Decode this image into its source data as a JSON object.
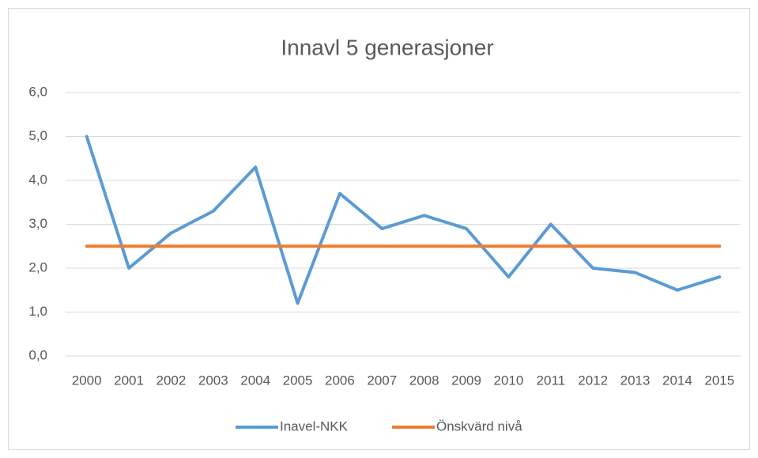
{
  "chart_data": {
    "type": "line",
    "title": "Innavl 5 generasjoner",
    "categories": [
      "2000",
      "2001",
      "2002",
      "2003",
      "2004",
      "2005",
      "2006",
      "2007",
      "2008",
      "2009",
      "2010",
      "2011",
      "2012",
      "2013",
      "2014",
      "2015"
    ],
    "series": [
      {
        "name": "Inavel-NKK",
        "color": "#5b9bd5",
        "values": [
          5.0,
          2.0,
          2.8,
          3.3,
          4.3,
          1.2,
          3.7,
          2.9,
          3.2,
          2.9,
          1.8,
          3.0,
          2.0,
          1.9,
          1.5,
          1.8
        ]
      },
      {
        "name": "Önskvärd nivå",
        "color": "#ed7d31",
        "values": [
          2.5,
          2.5,
          2.5,
          2.5,
          2.5,
          2.5,
          2.5,
          2.5,
          2.5,
          2.5,
          2.5,
          2.5,
          2.5,
          2.5,
          2.5,
          2.5
        ]
      }
    ],
    "ylim": [
      0,
      6
    ],
    "yticks": [
      {
        "value": 0,
        "label": "0,0"
      },
      {
        "value": 1,
        "label": "1,0"
      },
      {
        "value": 2,
        "label": "2,0"
      },
      {
        "value": 3,
        "label": "3,0"
      },
      {
        "value": 4,
        "label": "4,0"
      },
      {
        "value": 5,
        "label": "5,0"
      },
      {
        "value": 6,
        "label": "6,0"
      }
    ],
    "grid": true,
    "legend": "bottom"
  }
}
